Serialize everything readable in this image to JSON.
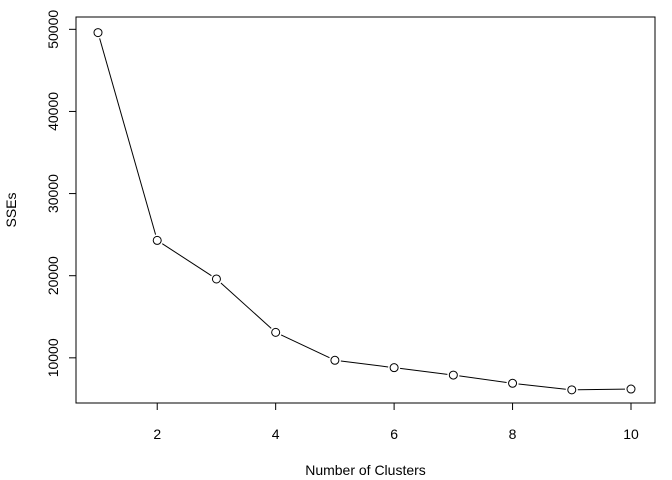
{
  "chart_data": {
    "type": "line",
    "title": "",
    "xlabel": "Number of Clusters",
    "ylabel": "SSEs",
    "x": [
      1,
      2,
      3,
      4,
      5,
      6,
      7,
      8,
      9,
      10
    ],
    "series": [
      {
        "values": [
          49600,
          24300,
          19600,
          13100,
          9700,
          8800,
          7900,
          6900,
          6100,
          6200
        ]
      }
    ],
    "xlim": [
      1,
      10
    ],
    "ylim": [
      4500,
      51500
    ],
    "x_ticks": [
      2,
      4,
      6,
      8,
      10
    ],
    "y_ticks": [
      10000,
      20000,
      30000,
      40000,
      50000
    ],
    "x_tick_labels": [
      "2",
      "4",
      "6",
      "8",
      "10"
    ],
    "y_tick_labels": [
      "10000",
      "20000",
      "30000",
      "40000",
      "50000"
    ],
    "grid": false,
    "marker": "open-circle",
    "line_color": "#000000",
    "marker_fill": "#ffffff"
  }
}
